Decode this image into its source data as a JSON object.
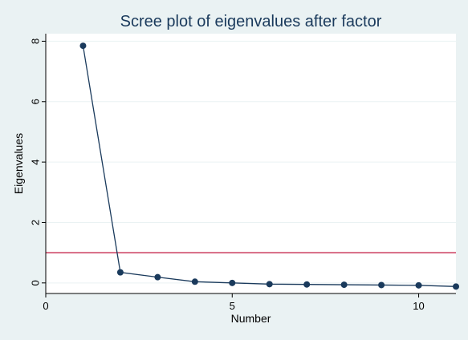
{
  "chart_data": {
    "type": "line",
    "title": "Scree plot of eigenvalues after factor",
    "xlabel": "Number",
    "ylabel": "Eigenvalues",
    "xlim": [
      0,
      11
    ],
    "ylim": [
      -0.35,
      8.25
    ],
    "xticks": [
      0,
      5,
      10
    ],
    "yticks": [
      0,
      2,
      4,
      6,
      8
    ],
    "grid": true,
    "reference_line": {
      "y": 1,
      "color": "#c0143c"
    },
    "series": [
      {
        "x": [
          1,
          2,
          3,
          4,
          5,
          6,
          7,
          8,
          9,
          10,
          11
        ],
        "values": [
          7.85,
          0.35,
          0.19,
          0.04,
          0.0,
          -0.04,
          -0.05,
          -0.06,
          -0.07,
          -0.08,
          -0.12
        ],
        "color": "#1a3a5c"
      }
    ]
  }
}
